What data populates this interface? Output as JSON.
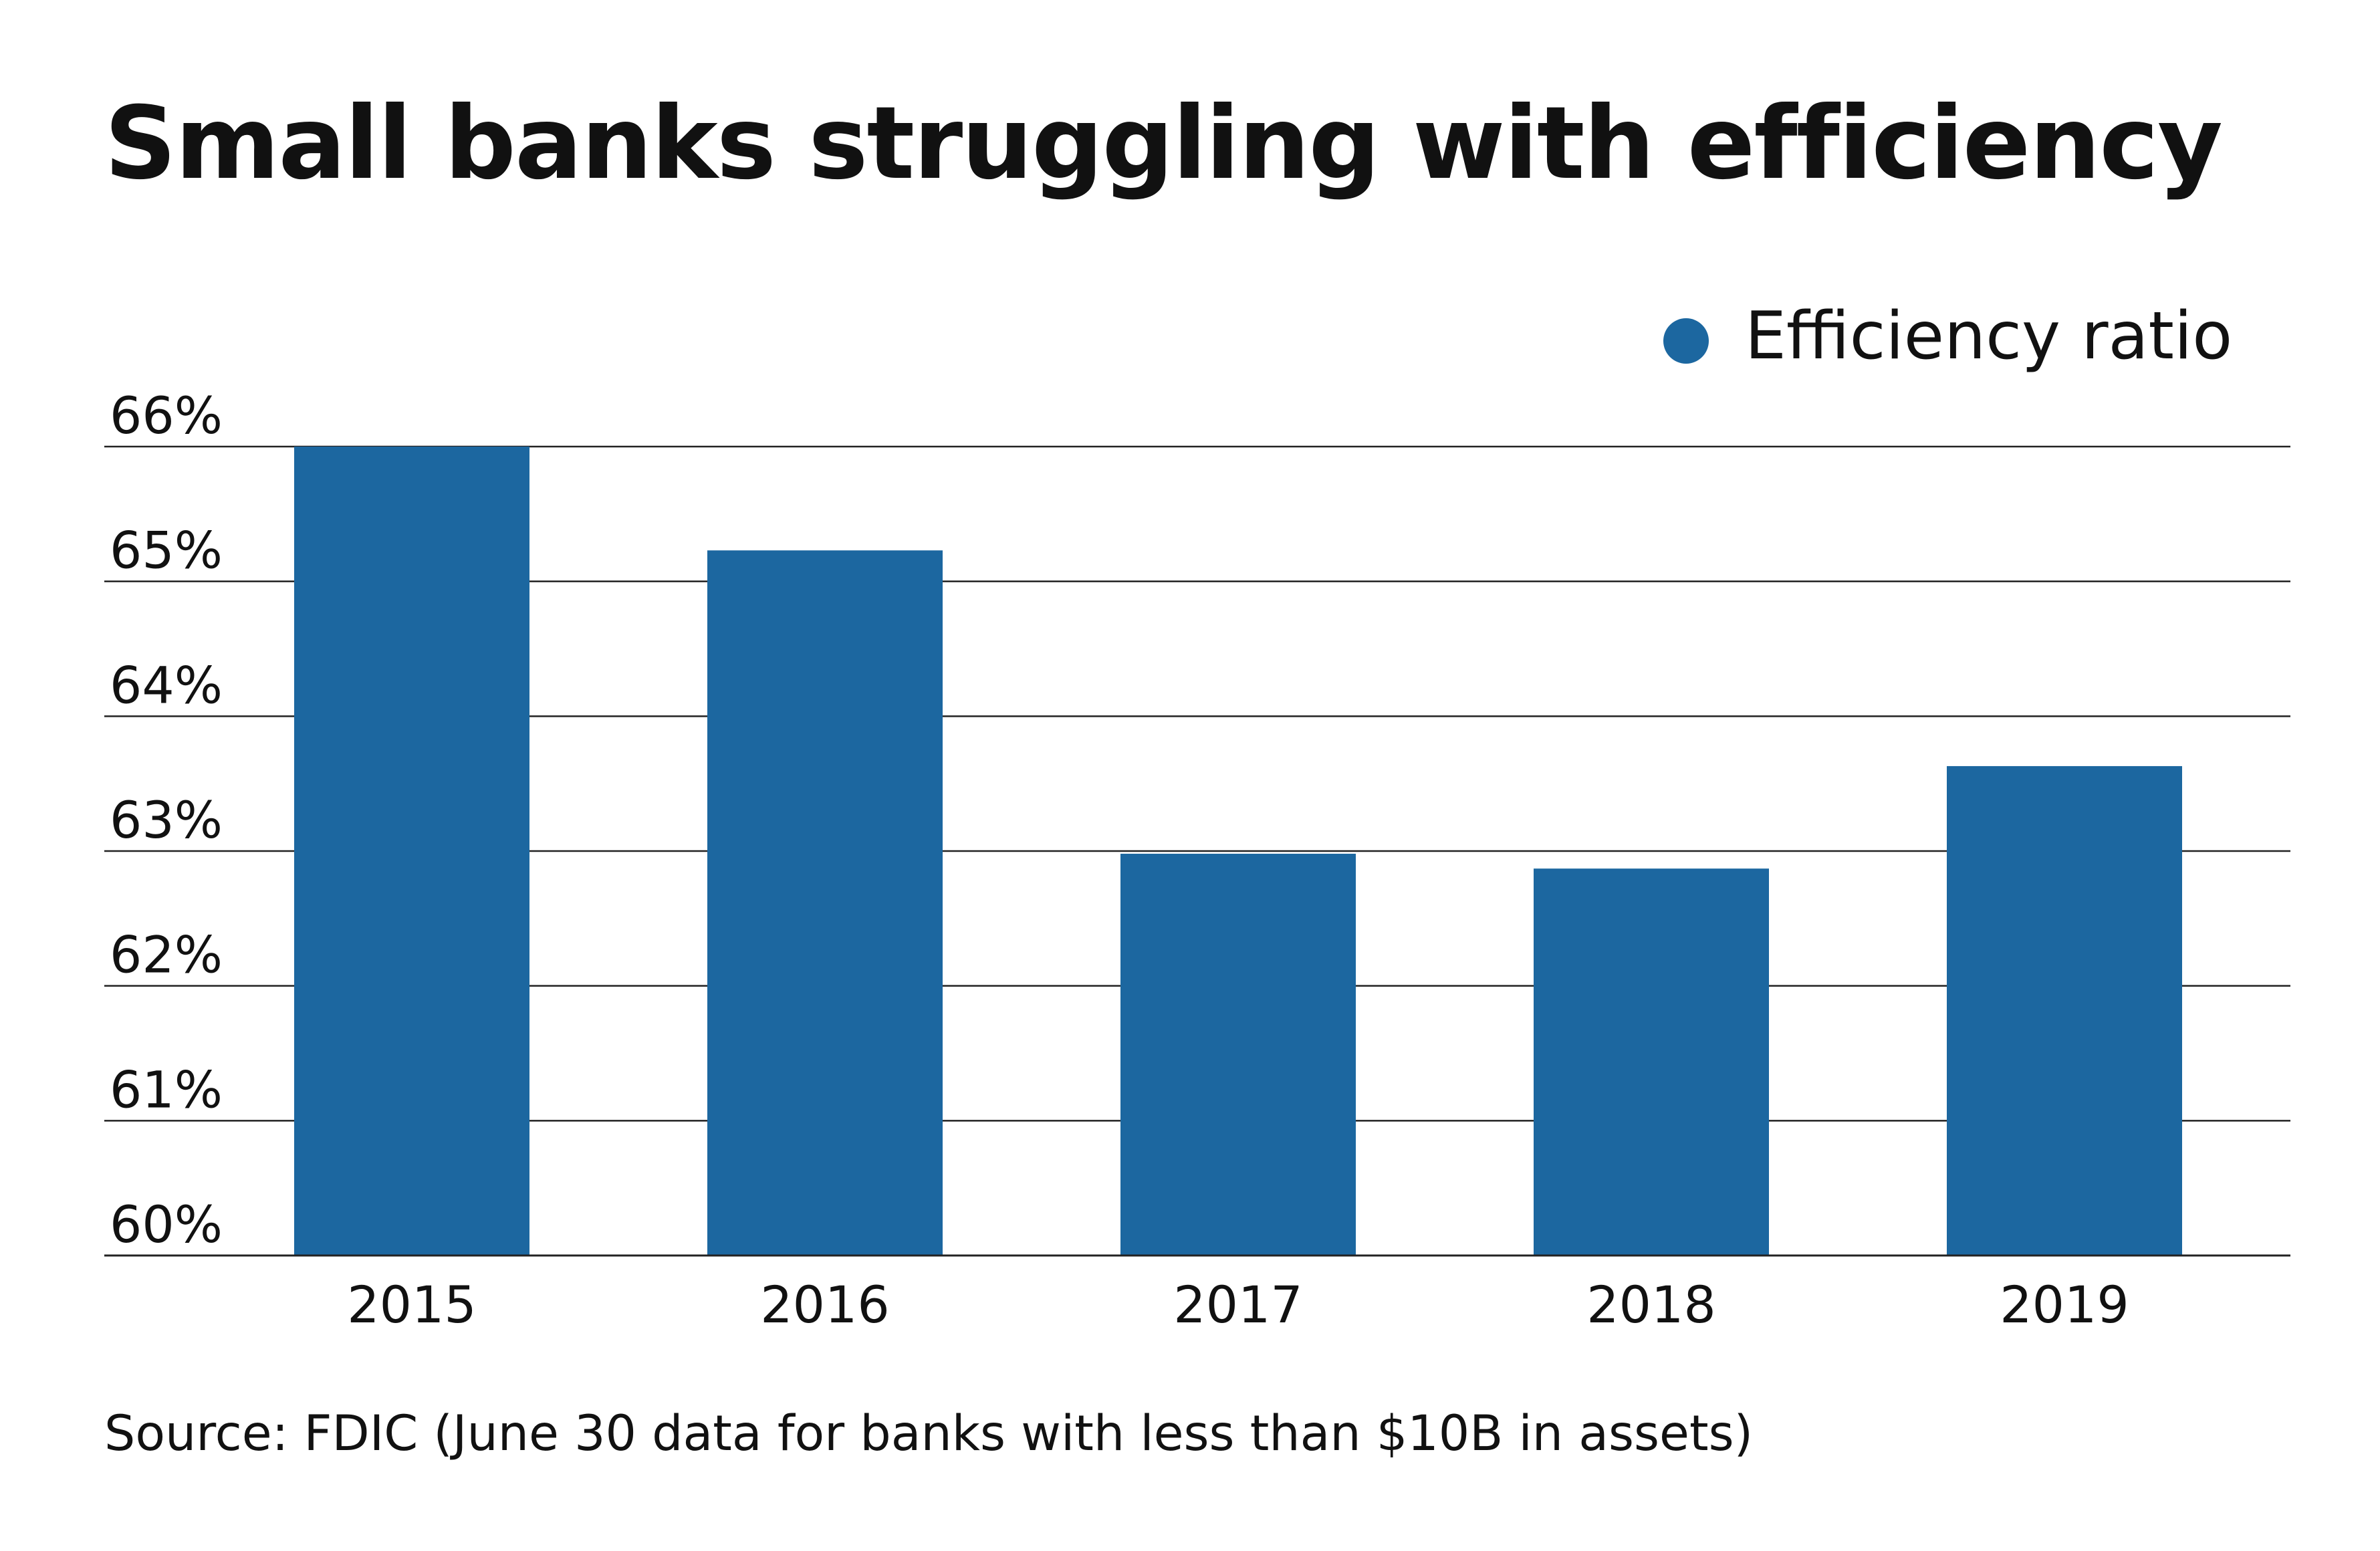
{
  "chart_data": {
    "type": "bar",
    "title": "Small banks struggling with efficiency",
    "source": "Source: FDIC (June 30 data for banks with less than $10B in assets)",
    "legend": {
      "position": "top-right"
    },
    "categories": [
      "2015",
      "2016",
      "2017",
      "2018",
      "2019"
    ],
    "series": [
      {
        "name": "Efficiency ratio",
        "color": "#1c67a0",
        "values": [
          66.0,
          65.23,
          62.98,
          62.87,
          63.63
        ]
      }
    ],
    "ylim": [
      60,
      66
    ],
    "yticks": [
      60,
      61,
      62,
      63,
      64,
      65,
      66
    ],
    "ytick_labels": [
      "60%",
      "61%",
      "62%",
      "63%",
      "64%",
      "65%",
      "66%"
    ],
    "grid": true,
    "xlabel": "",
    "ylabel": ""
  }
}
